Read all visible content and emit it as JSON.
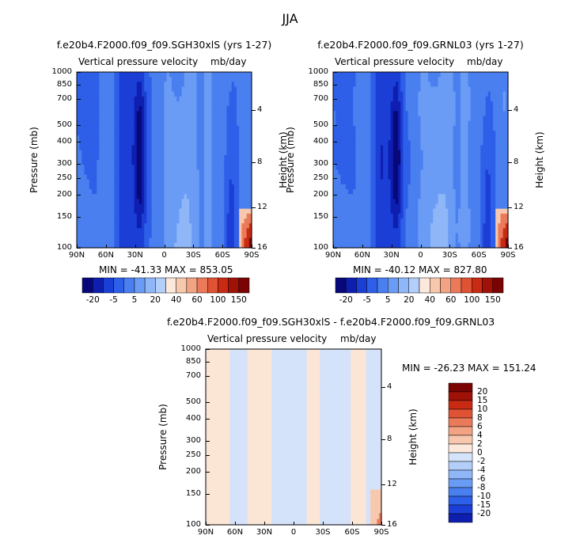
{
  "figure_title": "JJA",
  "palette": {
    "blues": [
      "#08087a",
      "#0e1fb0",
      "#1b3fd6",
      "#2e5fe8",
      "#4a7ff0",
      "#6a9cf5",
      "#8fb7f8",
      "#b3cef9",
      "#d6e4fb"
    ],
    "reds": [
      "#fde8dc",
      "#f8c8ae",
      "#f2a383",
      "#ea7a5a",
      "#df5234",
      "#c82a14",
      "#a01208",
      "#7a0404"
    ]
  },
  "chart_data": [
    {
      "type": "heatmap",
      "title": "f.e20b4.F2000.f09_f09.SGH30xlS (yrs 1-27)",
      "subtitle": "Vertical pressure velocity",
      "units": "mb/day",
      "ylabel": "Pressure (mb)",
      "ylabel_right": "Height (km)",
      "xticks": [
        "90N",
        "60N",
        "30N",
        "0",
        "30S",
        "60S",
        "90S"
      ],
      "yticks": [
        "100",
        "150",
        "200",
        "250",
        "300",
        "400",
        "500",
        "700",
        "850",
        "1000"
      ],
      "yticks_right": [
        "16",
        "12",
        "8",
        "4"
      ],
      "y_scale": "log",
      "ylim": [
        1000,
        100
      ],
      "min_max_text": "MIN = -41.33   MAX = 853.05",
      "min": -41.33,
      "max": 853.05,
      "colorbar_labels": [
        "-20",
        "-5",
        "5",
        "20",
        "40",
        "60",
        "100",
        "150"
      ],
      "colorbar_count": 16
    },
    {
      "type": "heatmap",
      "title": "f.e20b4.F2000.f09_f09.GRNL03 (yrs 1-27)",
      "subtitle": "Vertical pressure velocity",
      "units": "mb/day",
      "ylabel": "Pressure (mb)",
      "ylabel_right": "Height (km)",
      "xticks": [
        "90N",
        "60N",
        "30N",
        "0",
        "30S",
        "60S",
        "90S"
      ],
      "yticks": [
        "100",
        "150",
        "200",
        "250",
        "300",
        "400",
        "500",
        "700",
        "850",
        "1000"
      ],
      "yticks_right": [
        "16",
        "12",
        "8",
        "4"
      ],
      "y_scale": "log",
      "ylim": [
        1000,
        100
      ],
      "min_max_text": "MIN = -40.12   MAX = 827.80",
      "min": -40.12,
      "max": 827.8,
      "colorbar_labels": [
        "-20",
        "-5",
        "5",
        "20",
        "40",
        "60",
        "100",
        "150"
      ],
      "colorbar_count": 16
    },
    {
      "type": "heatmap",
      "title": "f.e20b4.F2000.f09_f09.SGH30xlS - f.e20b4.F2000.f09_f09.GRNL03",
      "subtitle": "Vertical pressure velocity",
      "units": "mb/day",
      "ylabel": "Pressure (mb)",
      "ylabel_right": "Height (km)",
      "xticks": [
        "90N",
        "60N",
        "30N",
        "0",
        "30S",
        "60S",
        "90S"
      ],
      "yticks": [
        "100",
        "150",
        "200",
        "250",
        "300",
        "400",
        "500",
        "700",
        "850",
        "1000"
      ],
      "yticks_right": [
        "16",
        "12",
        "8",
        "4"
      ],
      "y_scale": "log",
      "ylim": [
        1000,
        100
      ],
      "min_max_text": "MIN = -26.23   MAX = 151.24",
      "min": -26.23,
      "max": 151.24,
      "colorbar_labels": [
        "20",
        "15",
        "10",
        "8",
        "6",
        "4",
        "2",
        "0",
        "-2",
        "-4",
        "-6",
        "-8",
        "-10",
        "-15",
        "-20"
      ],
      "colorbar_count": 16
    }
  ]
}
